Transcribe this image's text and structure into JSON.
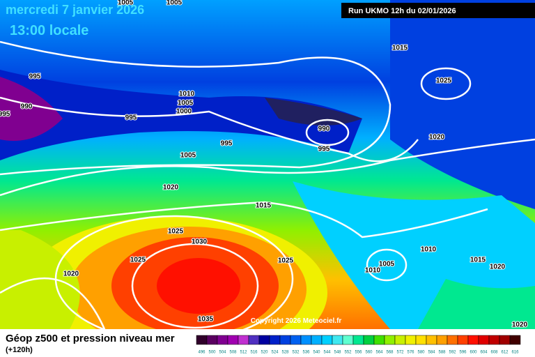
{
  "header": {
    "date": "mercredi 7 janvier 2026",
    "time": "13:00 locale",
    "run": "Run UKMO 12h du 02/01/2026"
  },
  "isobar_labels": [
    "1005",
    "1005",
    "995",
    "990",
    "995",
    "995",
    "1010",
    "1005",
    "1000",
    "995",
    "1005",
    "990",
    "995",
    "1015",
    "1025",
    "1020",
    "1020",
    "1015",
    "1025",
    "1030",
    "1025",
    "1025",
    "1020",
    "1035",
    "1010",
    "1005",
    "1010",
    "1015",
    "1020",
    "1020"
  ],
  "copyright": "Copyright 2026 Meteociel.fr",
  "legend": {
    "title": "Géop z500 et pression niveau mer",
    "subtitle": "(+120h)",
    "scale": [
      496,
      500,
      504,
      508,
      512,
      516,
      520,
      524,
      528,
      532,
      536,
      540,
      544,
      548,
      552,
      556,
      560,
      564,
      568,
      572,
      576,
      580,
      584,
      588,
      592,
      596,
      600,
      604,
      608,
      612,
      616
    ],
    "colors": [
      "#30002a",
      "#5a0060",
      "#800090",
      "#a000b0",
      "#c030d0",
      "#5030c0",
      "#0000a0",
      "#0020c8",
      "#0040e0",
      "#0060f0",
      "#0090ff",
      "#00b0ff",
      "#00d0ff",
      "#40e8f0",
      "#60ffd0",
      "#00e890",
      "#00d040",
      "#40e000",
      "#90f000",
      "#c8f000",
      "#f0f000",
      "#ffe000",
      "#ffc000",
      "#ffa000",
      "#ff7000",
      "#ff4000",
      "#ff1000",
      "#e00000",
      "#c00000",
      "#a00000",
      "#400000"
    ]
  }
}
